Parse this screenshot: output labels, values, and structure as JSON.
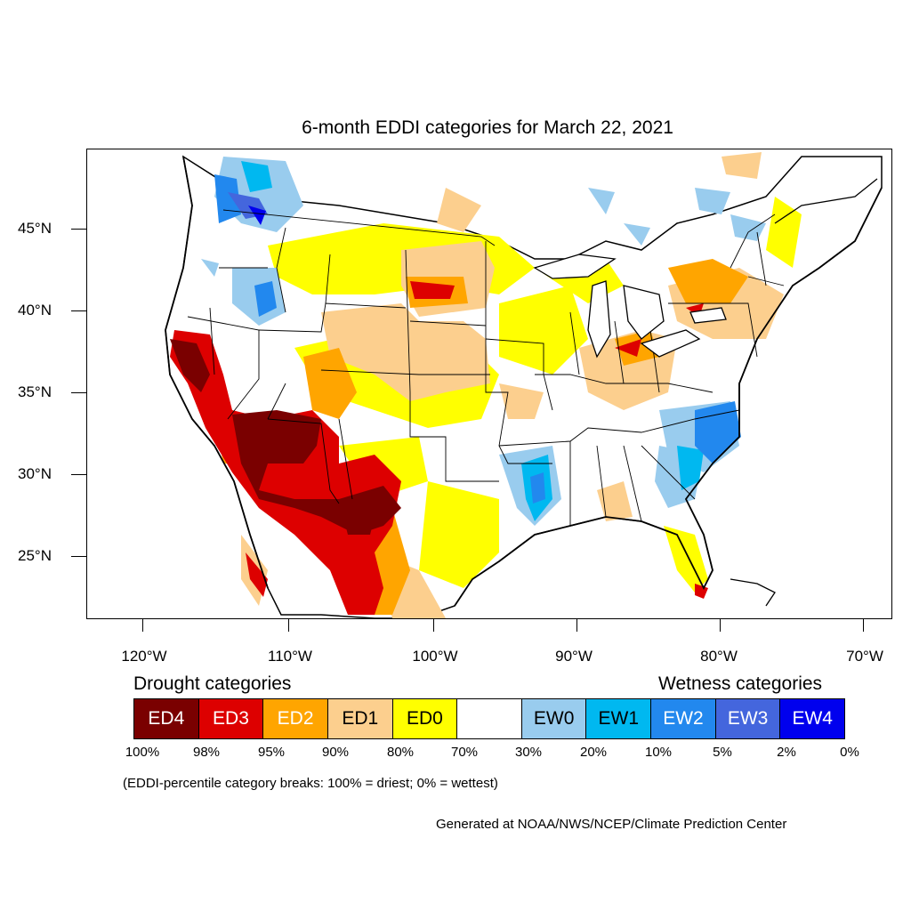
{
  "title": "6-month EDDI categories for March 22, 2021",
  "lat_labels": [
    "45°N",
    "40°N",
    "35°N",
    "30°N",
    "25°N"
  ],
  "lon_labels": [
    "120°W",
    "110°W",
    "100°W",
    "90°W",
    "80°W",
    "70°W"
  ],
  "legend": {
    "drought_heading": "Drought categories",
    "wetness_heading": "Wetness categories",
    "categories": [
      {
        "label": "ED4",
        "color": "#7a0000",
        "text_color": "#ffffff"
      },
      {
        "label": "ED3",
        "color": "#dd0000",
        "text_color": "#ffffff"
      },
      {
        "label": "ED2",
        "color": "#ffa500",
        "text_color": "#ffffff"
      },
      {
        "label": "ED1",
        "color": "#fccf8e",
        "text_color": "#000000"
      },
      {
        "label": "ED0",
        "color": "#ffff00",
        "text_color": "#000000"
      },
      {
        "label": "",
        "color": "#ffffff",
        "text_color": "#000000"
      },
      {
        "label": "EW0",
        "color": "#99ccee",
        "text_color": "#000000"
      },
      {
        "label": "EW1",
        "color": "#00b8f0",
        "text_color": "#000000"
      },
      {
        "label": "EW2",
        "color": "#2288ee",
        "text_color": "#ffffff"
      },
      {
        "label": "EW3",
        "color": "#4466dd",
        "text_color": "#ffffff"
      },
      {
        "label": "EW4",
        "color": "#0000ee",
        "text_color": "#ffffff"
      }
    ],
    "percentiles": [
      "100%",
      "98%",
      "95%",
      "90%",
      "80%",
      "70%",
      "30%",
      "20%",
      "10%",
      "5%",
      "2%",
      "0%"
    ]
  },
  "note": "(EDDI-percentile category breaks: 100% = driest; 0% = wettest)",
  "credit": "Generated at NOAA/NWS/NCEP/Climate Prediction Center"
}
